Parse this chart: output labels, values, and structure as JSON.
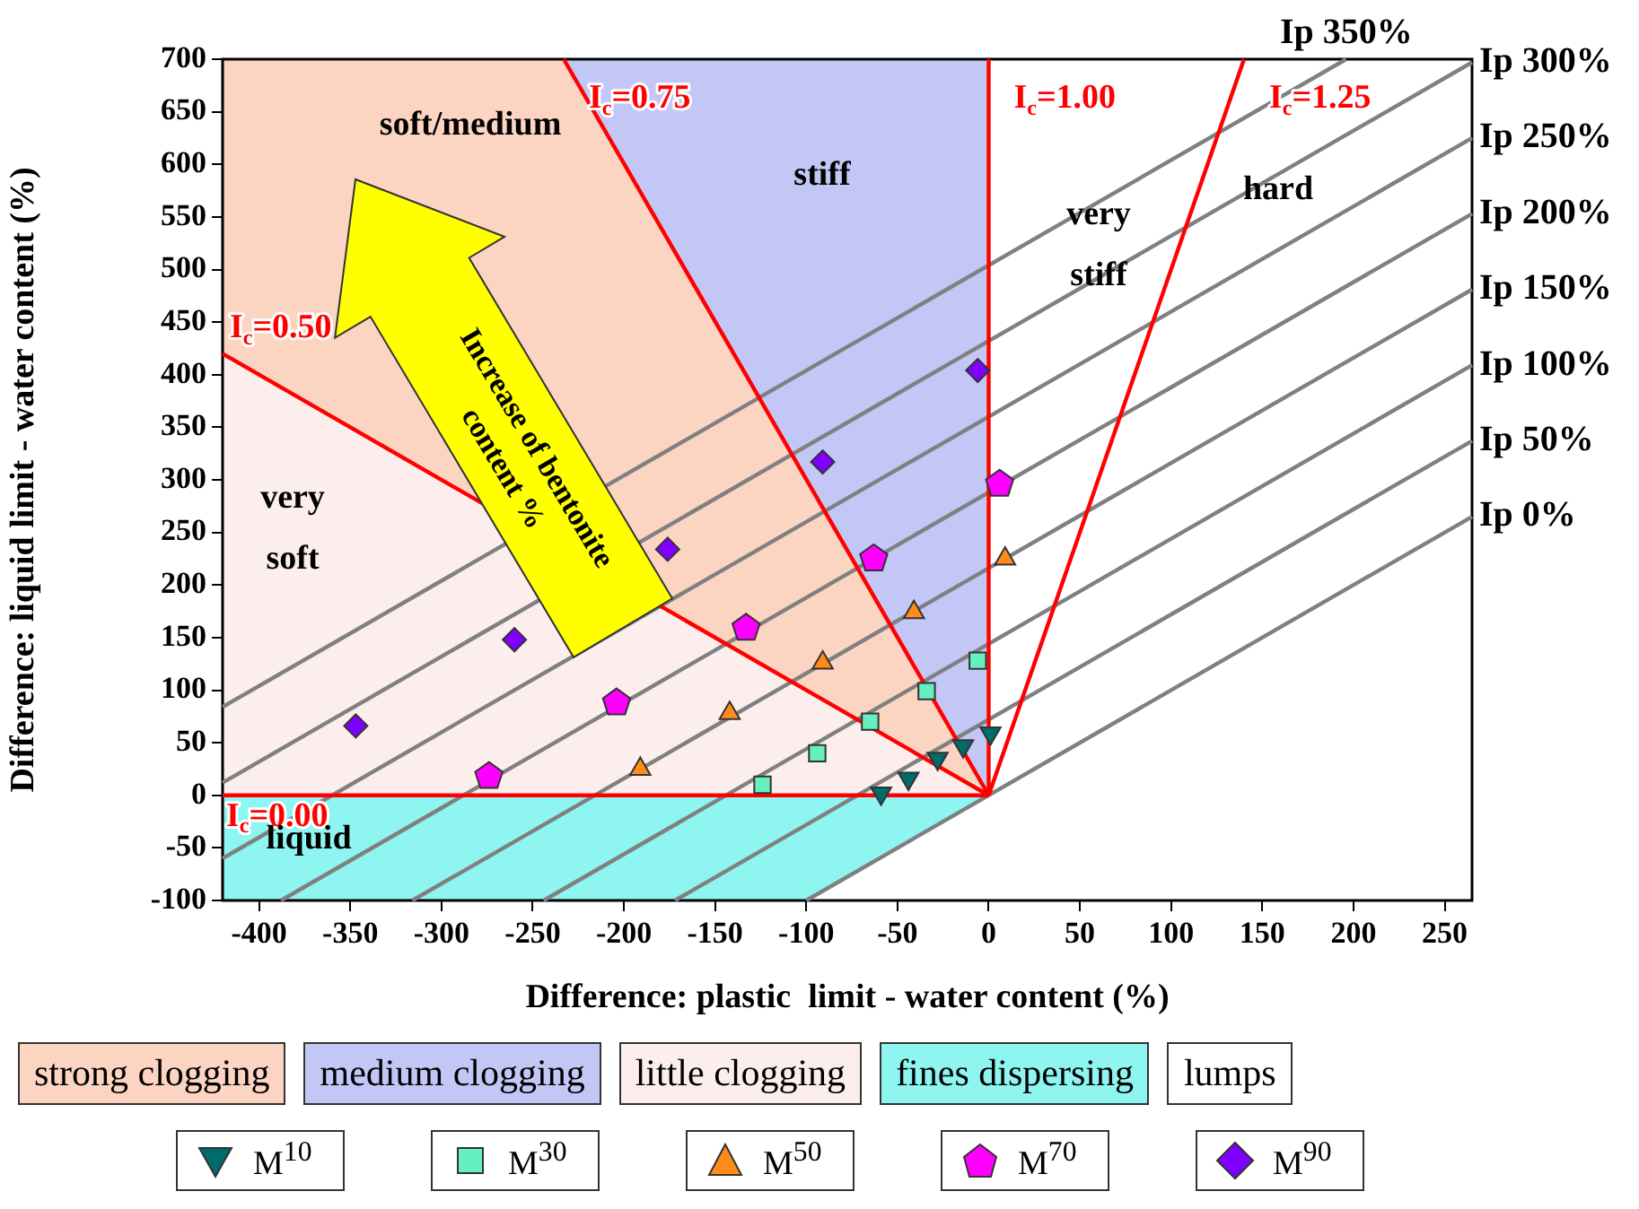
{
  "chart_data": {
    "type": "scatter",
    "xlabel": "Difference: plastic  limit - water content (%)",
    "ylabel": "Difference: liquid limit - water content (%)",
    "xlim": [
      -420,
      265
    ],
    "ylim": [
      -100,
      700
    ],
    "xticks": [
      -400,
      -350,
      -300,
      -250,
      -200,
      -150,
      -100,
      -50,
      0,
      50,
      100,
      150,
      200,
      250
    ],
    "yticks": [
      -100,
      -50,
      0,
      50,
      100,
      150,
      200,
      250,
      300,
      350,
      400,
      450,
      500,
      550,
      600,
      650,
      700
    ],
    "grid": false,
    "legend": "bottom",
    "series": [
      {
        "type": "scatter",
        "name": "M$^{10}$",
        "color": "#006b6b",
        "marker": "triangle",
        "x": [
          1,
          -14,
          -28,
          -44,
          -59
        ],
        "values": [
          59,
          47,
          35,
          16,
          2
        ]
      },
      {
        "type": "scatter",
        "name": "M$^{30}$",
        "color": "#66f0c0",
        "marker": "square",
        "x": [
          -6,
          -34,
          -65,
          -94,
          -124
        ],
        "values": [
          128,
          99,
          70,
          40,
          10
        ]
      },
      {
        "type": "scatter",
        "name": "M$^{50}$",
        "color": "#ff8c1a",
        "marker": "triangle",
        "x": [
          9,
          -41,
          -91,
          -142,
          -191
        ],
        "values": [
          225,
          174,
          126,
          78,
          25
        ]
      },
      {
        "type": "scatter",
        "name": "M$^{70}$",
        "color": "#ff00ff",
        "x": [
          6,
          -63,
          -133,
          -204,
          -274
        ],
        "values": [
          296,
          225,
          159,
          88,
          18
        ]
      },
      {
        "type": "scatter",
        "name": "M$^{90}$",
        "color": "#7f00ff",
        "marker": "diamond",
        "x": [
          -6,
          -91,
          -176,
          -260,
          -347
        ],
        "values": [
          404,
          317,
          234,
          148,
          66
        ]
      },
      {
        "type": "line",
        "name": "I$_{c}$=0.00",
        "color": "#ff0000",
        "x": [
          -420,
          0
        ],
        "values": [
          0,
          0
        ]
      },
      {
        "type": "line",
        "name": "I$_{c}$=0.50",
        "color": "#ff0000",
        "x": [
          -420,
          0
        ],
        "values": [
          420,
          0
        ]
      },
      {
        "type": "line",
        "name": "I$_{c}$=0.75",
        "color": "#ff0000",
        "x": [
          -233,
          0
        ],
        "values": [
          700,
          0
        ]
      },
      {
        "type": "line",
        "name": "I$_{c}$=1.00",
        "color": "#ff0000",
        "x": [
          0,
          0
        ],
        "values": [
          0,
          700
        ]
      },
      {
        "type": "line",
        "name": "I$_{c}$=1.25",
        "color": "#ff0000",
        "x": [
          0,
          140
        ],
        "values": [
          0,
          700
        ]
      },
      {
        "type": "line",
        "name": "Ip 0%",
        "color": "#808080",
        "x": [
          -100,
          265
        ],
        "values": [
          -100,
          265
        ]
      },
      {
        "type": "line",
        "name": "Ip 50%",
        "color": "#808080",
        "x": [
          -172,
          265
        ],
        "values": [
          -100,
          337
        ]
      },
      {
        "type": "line",
        "name": "Ip 100%",
        "color": "#808080",
        "x": [
          -244,
          265
        ],
        "values": [
          -100,
          409
        ]
      },
      {
        "type": "line",
        "name": "Ip 150%",
        "color": "#808080",
        "x": [
          -316,
          265
        ],
        "values": [
          -100,
          481
        ]
      },
      {
        "type": "line",
        "name": "Ip 200%",
        "color": "#808080",
        "x": [
          -388,
          265
        ],
        "values": [
          -100,
          553
        ]
      },
      {
        "type": "line",
        "name": "Ip 250%",
        "color": "#808080",
        "x": [
          -420,
          265
        ],
        "values": [
          -60,
          625
        ]
      },
      {
        "type": "line",
        "name": "Ip 300%",
        "color": "#808080",
        "x": [
          -420,
          265
        ],
        "values": [
          12,
          697
        ]
      },
      {
        "type": "line",
        "name": "Ip 350%",
        "color": "#808080",
        "x": [
          -420,
          196
        ],
        "values": [
          84,
          700
        ]
      }
    ],
    "annotations": [
      "soft/medium",
      "stiff",
      "very stiff",
      "hard",
      "very soft",
      "liquid",
      "Increase of bentonite content %",
      "strong clogging",
      "medium clogging",
      "little clogging",
      "fines dispersing",
      "lumps"
    ]
  }
}
